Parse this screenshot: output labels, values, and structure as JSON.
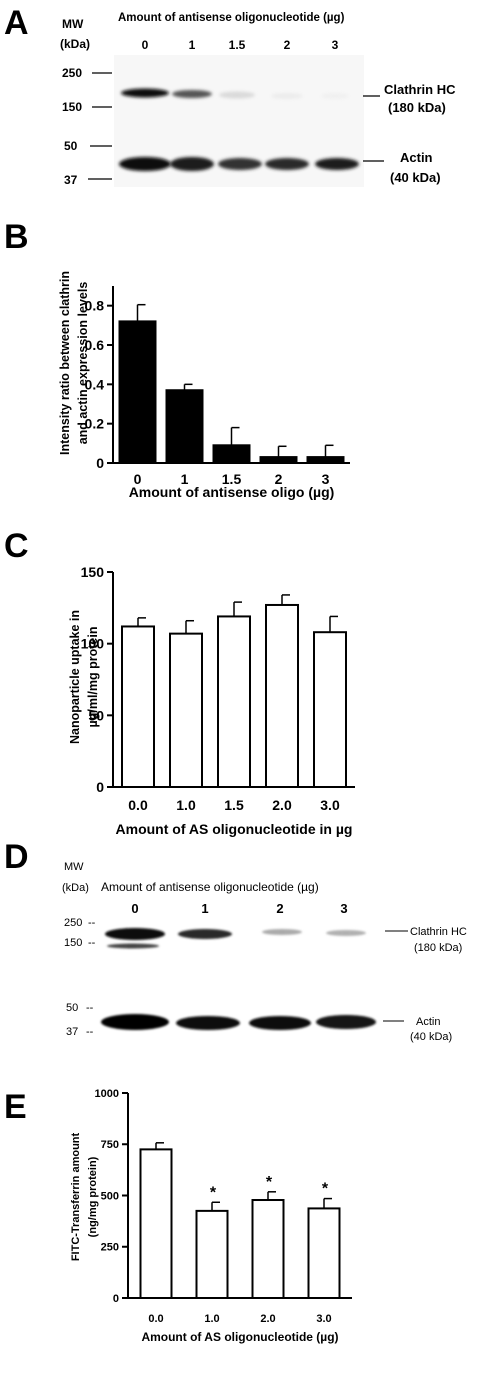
{
  "panels": {
    "A": {
      "letter": "A",
      "mw_label": "MW",
      "kda_label": "(kDa)",
      "title": "Amount of antisense oligonucleotide (µg)",
      "lanes": [
        "0",
        "1",
        "1.5",
        "2",
        "3"
      ],
      "mw_markers": [
        "250",
        "150",
        "50",
        "37"
      ],
      "band_labels": [
        "Clathrin HC",
        "(180 kDa)",
        "Actin",
        "(40 kDa)"
      ]
    },
    "D": {
      "letter": "D",
      "mw_label": "MW",
      "kda_label": "(kDa)",
      "title": "Amount of antisense oligonucleotide (µg)",
      "lanes": [
        "0",
        "1",
        "2",
        "3"
      ],
      "mw_markers": [
        "250",
        "150",
        "50",
        "37"
      ],
      "band_labels": [
        "Clathrin HC",
        "(180 kDa)",
        "Actin",
        "(40 kDa)"
      ]
    }
  },
  "chart_data": [
    {
      "letter": "B",
      "type": "bar",
      "bar_color": "#000000",
      "categories": [
        "0",
        "1",
        "1.5",
        "2",
        "3"
      ],
      "values": [
        0.72,
        0.37,
        0.09,
        0.03,
        0.03
      ],
      "errors": [
        0.085,
        0.03,
        0.09,
        0.055,
        0.06
      ],
      "ylabel_lines": [
        "Intensity ratio between clathrin",
        "and actin expression levels"
      ],
      "xlabel": "Amount of antisense oligo (µg)",
      "yticks": [
        "0",
        "0.2",
        "0.4",
        "0.6",
        "0.8"
      ],
      "ylim": [
        0,
        0.9
      ],
      "annotations": [
        "",
        "",
        "",
        "",
        ""
      ]
    },
    {
      "letter": "C",
      "type": "bar",
      "bar_color": "#ffffff",
      "categories": [
        "0.0",
        "1.0",
        "1.5",
        "2.0",
        "3.0"
      ],
      "values": [
        112,
        107,
        119,
        127,
        108
      ],
      "errors": [
        6,
        9,
        10,
        7,
        11
      ],
      "ylabel_lines": [
        "Nanoparticle uptake in",
        "µg/ml/mg protein"
      ],
      "xlabel": "Amount of AS oligonucleotide in µg",
      "yticks": [
        "0",
        "50",
        "100",
        "150"
      ],
      "ylim": [
        0,
        150
      ],
      "annotations": [
        "",
        "",
        "",
        "",
        ""
      ]
    },
    {
      "letter": "E",
      "type": "bar",
      "bar_color": "#ffffff",
      "categories": [
        "0.0",
        "1.0",
        "2.0",
        "3.0"
      ],
      "values": [
        725,
        425,
        478,
        437
      ],
      "errors": [
        32,
        42,
        40,
        48
      ],
      "ylabel_lines": [
        "FITC-Transferrin amount",
        "(ng/mg protein)"
      ],
      "xlabel": "Amount of AS oligonucleotide (µg)",
      "yticks": [
        "0",
        "250",
        "500",
        "750",
        "1000"
      ],
      "ylim": [
        0,
        1000
      ],
      "annotations": [
        "",
        "*",
        "*",
        "*"
      ]
    }
  ]
}
